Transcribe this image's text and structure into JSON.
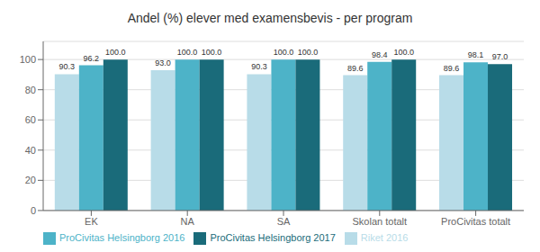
{
  "chart_data": {
    "type": "bar",
    "title": "Andel (%) elever med examensbevis - per program",
    "categories": [
      "EK",
      "NA",
      "SA",
      "Skolan totalt",
      "ProCivitas totalt"
    ],
    "series": [
      {
        "name": "Riket 2016",
        "color": "#b8dce8",
        "values": [
          90.3,
          93.0,
          90.3,
          89.6,
          89.6
        ],
        "value_labels": [
          "90.3",
          "93.0",
          "90.3",
          "89.6",
          "89.6"
        ]
      },
      {
        "name": "ProCivitas Helsingborg 2016",
        "color": "#4db3c8",
        "values": [
          96.2,
          100.0,
          100.0,
          98.4,
          98.1
        ],
        "value_labels": [
          "96.2",
          "100.0",
          "100.0",
          "98.4",
          "98.1"
        ]
      },
      {
        "name": "ProCivitas Helsingborg 2017",
        "color": "#1a6b7a",
        "values": [
          100.0,
          100.0,
          100.0,
          100.0,
          97.0
        ],
        "value_labels": [
          "100.0",
          "100.0",
          "100.0",
          "100.0",
          "97.0"
        ]
      }
    ],
    "ylim": [
      0,
      112
    ],
    "yticks": [
      0,
      20,
      40,
      60,
      80,
      100
    ],
    "grid": true,
    "legend": "bottom",
    "data_labels": true
  }
}
